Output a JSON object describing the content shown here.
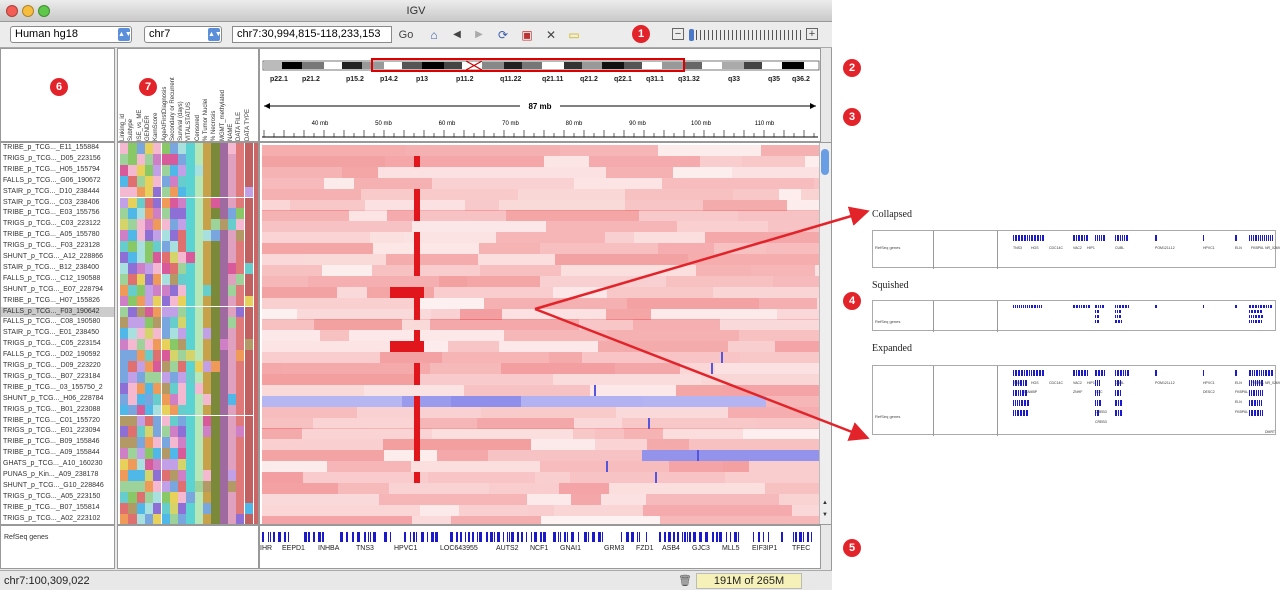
{
  "window": {
    "title": "IGV"
  },
  "toolbar": {
    "genome": "Human hg18",
    "chromosome": "chr7",
    "locus": "chr7:30,994,815-118,233,153",
    "go_label": "Go"
  },
  "ideogram": {
    "bands": [
      "p22.1",
      "p21.2",
      "p15.2",
      "p14.2",
      "p13",
      "p11.2",
      "q11.22",
      "q21.11",
      "q21.2",
      "q22.1",
      "q31.1",
      "q31.32",
      "q33",
      "q35",
      "q36.2"
    ]
  },
  "ruler": {
    "span": "87 mb",
    "ticks": [
      "40 mb",
      "50 mb",
      "60 mb",
      "70 mb",
      "80 mb",
      "90 mb",
      "100 mb",
      "110 mb"
    ]
  },
  "attributes": [
    "Linking_id",
    "Subtype",
    "ISE_vs_ME",
    "GENDER",
    "KarnScore",
    "AgeAtFirstDiagnosis",
    "Secondary or Recurrent",
    "Survival (days)",
    "VITALSTATUS",
    "Censored",
    "% Tumor Nuclei",
    "% Necrosis",
    "MGMT_methylated",
    "NAME",
    "DATA FILE",
    "DATA TYPE"
  ],
  "samples": [
    "TRIBE_p_TCG..._E11_155884",
    "TRIGS_p_TCG..._D05_223156",
    "TRIBE_p_TCG..._H05_155794",
    "FALLS_p_TCG..._G06_190672",
    "STAIR_p_TCG..._D10_238444",
    "STAIR_p_TCG..._C03_238406",
    "TRIBE_p_TCG..._E03_155756",
    "TRIGS_p_TCG..._C03_223122",
    "TRIBE_p_TCG..._A05_155780",
    "TRIGS_p_TCG..._F03_223128",
    "SHUNT_p_TCG..._A12_228866",
    "STAIR_p_TCG..._B12_238400",
    "FALLS_p_TCG..._C12_190588",
    "SHUNT_p_TCG..._E07_228794",
    "TRIBE_p_TCG..._H07_155826",
    "FALLS_p_TCG..._F03_190642",
    "FALLS_p_TCG..._C08_190580",
    "STAIR_p_TCG..._E01_238450",
    "TRIGS_p_TCG..._C05_223154",
    "FALLS_p_TCG..._D02_190592",
    "TRIGS_p_TCG..._D09_223220",
    "TRIGS_p_TCG..._B07_223184",
    "TRIBE_p_TCG..._03_155750_2",
    "SHUNT_p_TCG..._H06_228784",
    "TRIGS_p_TCG..._B01_223088",
    "TRIBE_p_TCG..._C01_155720",
    "TRIGS_p_TCG..._E01_223094",
    "TRIBE_p_TCG..._B09_155846",
    "TRIBE_p_TCG..._A09_155844",
    "GHATS_p_TCG..._A10_160230",
    "PUNAS_p_Kin..._A09_238178",
    "SHUNT_p_TCG..._G10_228846",
    "TRIGS_p_TCG..._A05_223150",
    "TRIBE_p_TCG..._B07_155814",
    "TRIGS_p_TCG..._A02_223102"
  ],
  "selected_sample_index": 15,
  "feature_track": {
    "name": "RefSeq genes",
    "genes": [
      "IHR",
      "EEPD1",
      "INHBA",
      "TNS3",
      "HPVC1",
      "LOC643955",
      "AUTS2",
      "NCF1",
      "GNAI1",
      "GRM3",
      "FZD1",
      "ASB4",
      "GJC3",
      "MLL5",
      "EIF3IP1",
      "TFEC"
    ]
  },
  "status": {
    "locus": "chr7:100,309,022",
    "memory": "191M of 265M"
  },
  "callouts": [
    "1",
    "2",
    "3",
    "4",
    "5",
    "6",
    "7"
  ],
  "insets": [
    {
      "label": "Collapsed",
      "track": "RefSeq genes",
      "genes": [
        "TNS3",
        "HGS",
        "CDC14C",
        "VAC2",
        "HIP1",
        "CUBL",
        "POM121L12",
        "HPVC1",
        "ELN",
        "FKBP6L",
        "NR_026929"
      ]
    },
    {
      "label": "Squished",
      "track": "RefSeq genes"
    },
    {
      "label": "Expanded",
      "track": "RefSeq genes",
      "genes": [
        "TNS3",
        "HGS",
        "CDC14C",
        "VAC2",
        "HIP1",
        "CUBL",
        "POM121L12",
        "HPVC1",
        "ELN",
        "FKBP6L",
        "NR_026929",
        "STAMBP",
        "ZNHF",
        "EGC",
        "CREB3",
        "DESC2",
        "FKBP6L",
        "ELN",
        "FKBP6L",
        "CREB3",
        "DMRT"
      ]
    }
  ],
  "colors": {
    "accent": "#e2242a",
    "amp": "#e8474a",
    "del": "#6f6fe6",
    "gene": "#1a1acc"
  }
}
